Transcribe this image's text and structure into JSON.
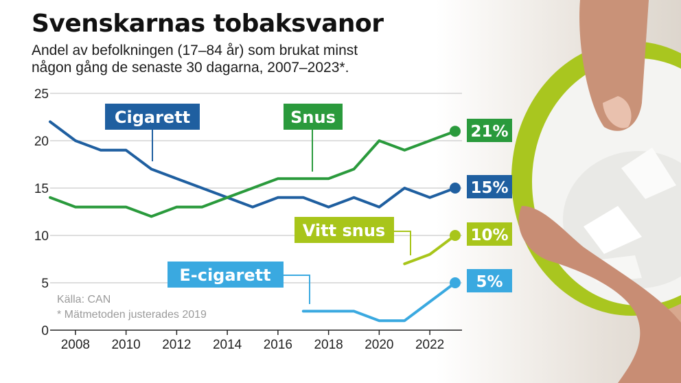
{
  "header": {
    "title": "Svenskarnas tobaksvanor",
    "subtitle_line1": "Andel av befolkningen (17–84 år) som brukat minst",
    "subtitle_line2": "någon gång de senaste 30 dagarna, 2007–2023*."
  },
  "notes": {
    "source": "Källa: CAN",
    "footnote": "* Mätmetoden justerades 2019"
  },
  "chart_data": {
    "type": "line",
    "xlim": [
      2007,
      2023
    ],
    "ylim": [
      0,
      25
    ],
    "x_ticks": [
      2008,
      2010,
      2012,
      2014,
      2016,
      2018,
      2020,
      2022
    ],
    "y_ticks": [
      0,
      5,
      10,
      15,
      20,
      25
    ],
    "grid": "horizontal",
    "series": [
      {
        "name": "Cigarett",
        "color": "#1f5fa0",
        "x": [
          2007,
          2008,
          2009,
          2010,
          2011,
          2012,
          2013,
          2014,
          2015,
          2016,
          2017,
          2018,
          2019,
          2020,
          2021,
          2022,
          2023
        ],
        "values": [
          22,
          20,
          19,
          19,
          17,
          16,
          15,
          14,
          13,
          14,
          14,
          13,
          14,
          13,
          15,
          14,
          15
        ],
        "end_label": "15%"
      },
      {
        "name": "Snus",
        "color": "#2a9a3c",
        "x": [
          2007,
          2008,
          2009,
          2010,
          2011,
          2012,
          2013,
          2014,
          2015,
          2016,
          2017,
          2018,
          2019,
          2020,
          2021,
          2022,
          2023
        ],
        "values": [
          14,
          13,
          13,
          13,
          12,
          13,
          13,
          14,
          15,
          16,
          16,
          16,
          17,
          20,
          19,
          20,
          21
        ],
        "end_label": "21%"
      },
      {
        "name": "Vitt snus",
        "color": "#a8c51a",
        "x": [
          2021,
          2022,
          2023
        ],
        "values": [
          7,
          8,
          10
        ],
        "end_label": "10%"
      },
      {
        "name": "E-cigarett",
        "color": "#3aa9e0",
        "x": [
          2017,
          2018,
          2019,
          2020,
          2021,
          2022,
          2023
        ],
        "values": [
          2,
          2,
          2,
          1,
          1,
          3,
          5
        ],
        "end_label": "5%"
      }
    ]
  }
}
